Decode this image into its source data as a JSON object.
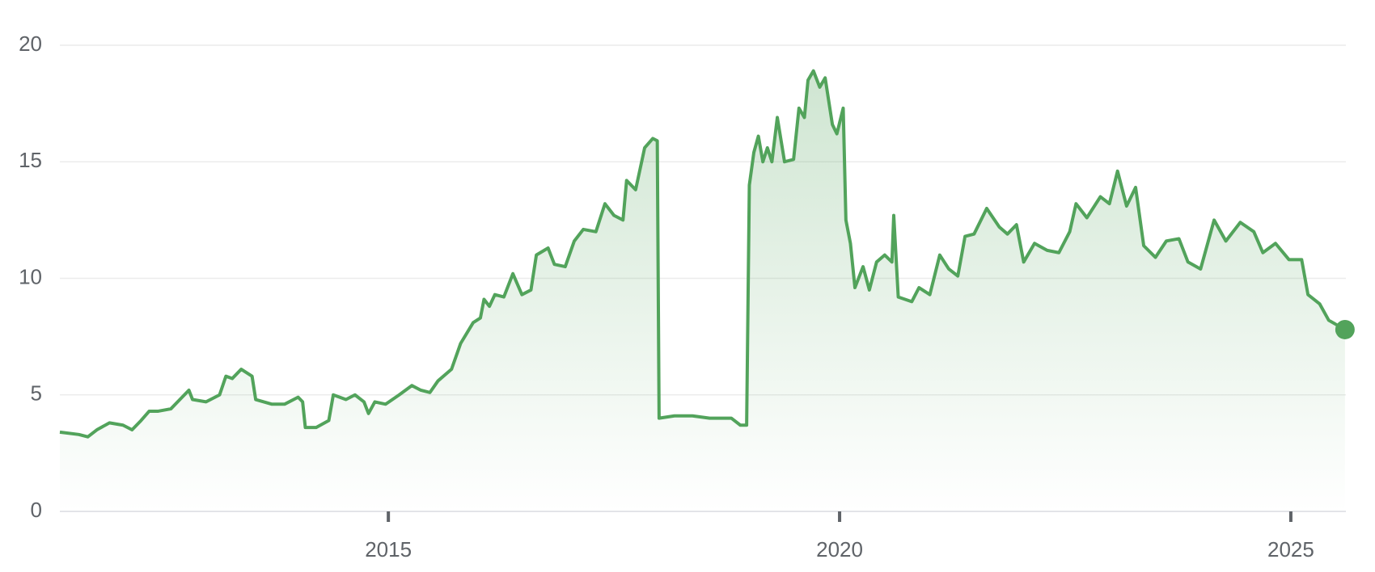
{
  "chart_data": {
    "type": "line",
    "color": "#52a35b",
    "grid": true,
    "xlim": [
      2011.36,
      2025.61
    ],
    "ylim": [
      0,
      20
    ],
    "xticks": [
      2015,
      2020,
      2025
    ],
    "yticks": [
      0,
      5,
      10,
      15,
      20
    ],
    "x": [
      2011.36,
      2011.57,
      2011.67,
      2011.77,
      2011.91,
      2012.06,
      2012.16,
      2012.26,
      2012.35,
      2012.45,
      2012.59,
      2012.69,
      2012.79,
      2012.83,
      2012.98,
      2013.13,
      2013.2,
      2013.27,
      2013.37,
      2013.49,
      2013.53,
      2013.71,
      2013.85,
      2014.0,
      2014.05,
      2014.08,
      2014.2,
      2014.34,
      2014.39,
      2014.53,
      2014.63,
      2014.73,
      2014.78,
      2014.85,
      2014.97,
      2015.12,
      2015.26,
      2015.36,
      2015.46,
      2015.55,
      2015.7,
      2015.8,
      2015.94,
      2016.02,
      2016.06,
      2016.12,
      2016.18,
      2016.28,
      2016.38,
      2016.48,
      2016.58,
      2016.64,
      2016.77,
      2016.84,
      2016.96,
      2017.06,
      2017.16,
      2017.3,
      2017.4,
      2017.5,
      2017.6,
      2017.64,
      2017.74,
      2017.84,
      2017.93,
      2017.98,
      2018.0,
      2018.17,
      2018.37,
      2018.56,
      2018.8,
      2018.9,
      2018.97,
      2019.0,
      2019.05,
      2019.1,
      2019.15,
      2019.2,
      2019.25,
      2019.31,
      2019.39,
      2019.49,
      2019.55,
      2019.61,
      2019.65,
      2019.71,
      2019.78,
      2019.84,
      2019.92,
      2019.97,
      2020.04,
      2020.07,
      2020.12,
      2020.17,
      2020.26,
      2020.33,
      2020.41,
      2020.5,
      2020.58,
      2020.6,
      2020.65,
      2020.8,
      2020.88,
      2021.0,
      2021.11,
      2021.21,
      2021.31,
      2021.39,
      2021.49,
      2021.63,
      2021.77,
      2021.86,
      2021.96,
      2022.04,
      2022.16,
      2022.3,
      2022.43,
      2022.55,
      2022.62,
      2022.74,
      2022.89,
      2022.99,
      2023.08,
      2023.18,
      2023.28,
      2023.37,
      2023.5,
      2023.62,
      2023.76,
      2023.86,
      2024.0,
      2024.15,
      2024.28,
      2024.44,
      2024.59,
      2024.69,
      2024.83,
      2024.98,
      2025.12,
      2025.19,
      2025.32,
      2025.42,
      2025.51,
      2025.6
    ],
    "values": [
      3.4,
      3.3,
      3.2,
      3.5,
      3.8,
      3.7,
      3.5,
      3.9,
      4.3,
      4.3,
      4.4,
      4.8,
      5.2,
      4.8,
      4.7,
      5.0,
      5.8,
      5.7,
      6.1,
      5.8,
      4.8,
      4.6,
      4.6,
      4.9,
      4.7,
      3.6,
      3.6,
      3.9,
      5.0,
      4.8,
      5.0,
      4.7,
      4.2,
      4.7,
      4.6,
      5.0,
      5.4,
      5.2,
      5.1,
      5.6,
      6.1,
      7.2,
      8.1,
      8.3,
      9.1,
      8.8,
      9.3,
      9.2,
      10.2,
      9.3,
      9.5,
      11.0,
      11.3,
      10.6,
      10.5,
      11.6,
      12.1,
      12.0,
      13.2,
      12.7,
      12.5,
      14.2,
      13.8,
      15.6,
      16.0,
      15.9,
      4.0,
      4.1,
      4.1,
      4.0,
      4.0,
      3.7,
      3.7,
      14.0,
      15.4,
      16.1,
      15.0,
      15.6,
      15.0,
      16.9,
      15.0,
      15.1,
      17.3,
      16.9,
      18.5,
      18.9,
      18.2,
      18.6,
      16.6,
      16.2,
      17.3,
      12.5,
      11.5,
      9.6,
      10.5,
      9.5,
      10.7,
      11.0,
      10.7,
      12.7,
      9.2,
      9.0,
      9.6,
      9.3,
      11.0,
      10.4,
      10.1,
      11.8,
      11.9,
      13.0,
      12.2,
      11.9,
      12.3,
      10.7,
      11.5,
      11.2,
      11.1,
      12.0,
      13.2,
      12.6,
      13.5,
      13.2,
      14.6,
      13.1,
      13.9,
      11.4,
      10.9,
      11.6,
      11.7,
      10.7,
      10.4,
      12.5,
      11.6,
      12.4,
      12.0,
      11.1,
      11.5,
      10.8,
      10.8,
      9.3,
      8.9,
      8.2,
      8.0,
      7.8
    ]
  }
}
